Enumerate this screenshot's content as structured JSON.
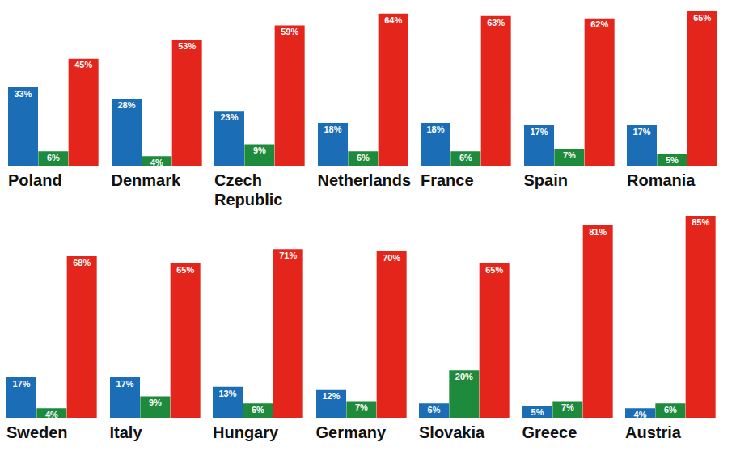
{
  "chart_data": [
    {
      "type": "bar",
      "title": "Poland",
      "categories": [
        null,
        null,
        null
      ],
      "values": [
        33,
        6,
        45
      ],
      "value_labels": [
        "33%",
        "6%",
        "45%"
      ],
      "colors": [
        "#1b6db6",
        "#1e8a3c",
        "#e3251b"
      ],
      "data_labels": true,
      "tick_labels": false
    },
    {
      "type": "bar",
      "title": "Denmark",
      "categories": [
        null,
        null,
        null
      ],
      "values": [
        28,
        4,
        53
      ],
      "value_labels": [
        "28%",
        "4%",
        "53%"
      ],
      "colors": [
        "#1b6db6",
        "#1e8a3c",
        "#e3251b"
      ],
      "data_labels": true,
      "tick_labels": false
    },
    {
      "type": "bar",
      "title": "Czech Republic",
      "categories": [
        null,
        null,
        null
      ],
      "values": [
        23,
        9,
        59
      ],
      "value_labels": [
        "23%",
        "9%",
        "59%"
      ],
      "colors": [
        "#1b6db6",
        "#1e8a3c",
        "#e3251b"
      ],
      "data_labels": true,
      "tick_labels": false
    },
    {
      "type": "bar",
      "title": "Netherlands",
      "categories": [
        null,
        null,
        null
      ],
      "values": [
        18,
        6,
        64
      ],
      "value_labels": [
        "18%",
        "6%",
        "64%"
      ],
      "colors": [
        "#1b6db6",
        "#1e8a3c",
        "#e3251b"
      ],
      "data_labels": true,
      "tick_labels": false
    },
    {
      "type": "bar",
      "title": "France",
      "categories": [
        null,
        null,
        null
      ],
      "values": [
        18,
        6,
        63
      ],
      "value_labels": [
        "18%",
        "6%",
        "63%"
      ],
      "colors": [
        "#1b6db6",
        "#1e8a3c",
        "#e3251b"
      ],
      "data_labels": true,
      "tick_labels": false
    },
    {
      "type": "bar",
      "title": "Spain",
      "categories": [
        null,
        null,
        null
      ],
      "values": [
        17,
        7,
        62
      ],
      "value_labels": [
        "17%",
        "7%",
        "62%"
      ],
      "colors": [
        "#1b6db6",
        "#1e8a3c",
        "#e3251b"
      ],
      "data_labels": true,
      "tick_labels": false
    },
    {
      "type": "bar",
      "title": "Romania",
      "categories": [
        null,
        null,
        null
      ],
      "values": [
        17,
        5,
        65
      ],
      "value_labels": [
        "17%",
        "5%",
        "65%"
      ],
      "colors": [
        "#1b6db6",
        "#1e8a3c",
        "#e3251b"
      ],
      "data_labels": true,
      "tick_labels": false
    },
    {
      "type": "bar",
      "title": "Sweden",
      "categories": [
        null,
        null,
        null
      ],
      "values": [
        17,
        4,
        68
      ],
      "value_labels": [
        "17%",
        "4%",
        "68%"
      ],
      "colors": [
        "#1b6db6",
        "#1e8a3c",
        "#e3251b"
      ],
      "data_labels": true,
      "tick_labels": false
    },
    {
      "type": "bar",
      "title": "Italy",
      "categories": [
        null,
        null,
        null
      ],
      "values": [
        17,
        9,
        65
      ],
      "value_labels": [
        "17%",
        "9%",
        "65%"
      ],
      "colors": [
        "#1b6db6",
        "#1e8a3c",
        "#e3251b"
      ],
      "data_labels": true,
      "tick_labels": false
    },
    {
      "type": "bar",
      "title": "Hungary",
      "categories": [
        null,
        null,
        null
      ],
      "values": [
        13,
        6,
        71
      ],
      "value_labels": [
        "13%",
        "6%",
        "71%"
      ],
      "colors": [
        "#1b6db6",
        "#1e8a3c",
        "#e3251b"
      ],
      "data_labels": true,
      "tick_labels": false
    },
    {
      "type": "bar",
      "title": "Germany",
      "categories": [
        null,
        null,
        null
      ],
      "values": [
        12,
        7,
        70
      ],
      "value_labels": [
        "12%",
        "7%",
        "70%"
      ],
      "colors": [
        "#1b6db6",
        "#1e8a3c",
        "#e3251b"
      ],
      "data_labels": true,
      "tick_labels": false
    },
    {
      "type": "bar",
      "title": "Slovakia",
      "categories": [
        null,
        null,
        null
      ],
      "values": [
        6,
        20,
        65
      ],
      "value_labels": [
        "6%",
        "20%",
        "65%"
      ],
      "colors": [
        "#1b6db6",
        "#1e8a3c",
        "#e3251b"
      ],
      "data_labels": true,
      "tick_labels": false
    },
    {
      "type": "bar",
      "title": "Greece",
      "categories": [
        null,
        null,
        null
      ],
      "values": [
        5,
        7,
        81
      ],
      "value_labels": [
        "5%",
        "7%",
        "81%"
      ],
      "colors": [
        "#1b6db6",
        "#1e8a3c",
        "#e3251b"
      ],
      "data_labels": true,
      "tick_labels": false
    },
    {
      "type": "bar",
      "title": "Austria",
      "categories": [
        null,
        null,
        null
      ],
      "values": [
        4,
        6,
        85
      ],
      "value_labels": [
        "4%",
        "6%",
        "85%"
      ],
      "colors": [
        "#1b6db6",
        "#1e8a3c",
        "#e3251b"
      ],
      "data_labels": true,
      "tick_labels": false
    }
  ]
}
